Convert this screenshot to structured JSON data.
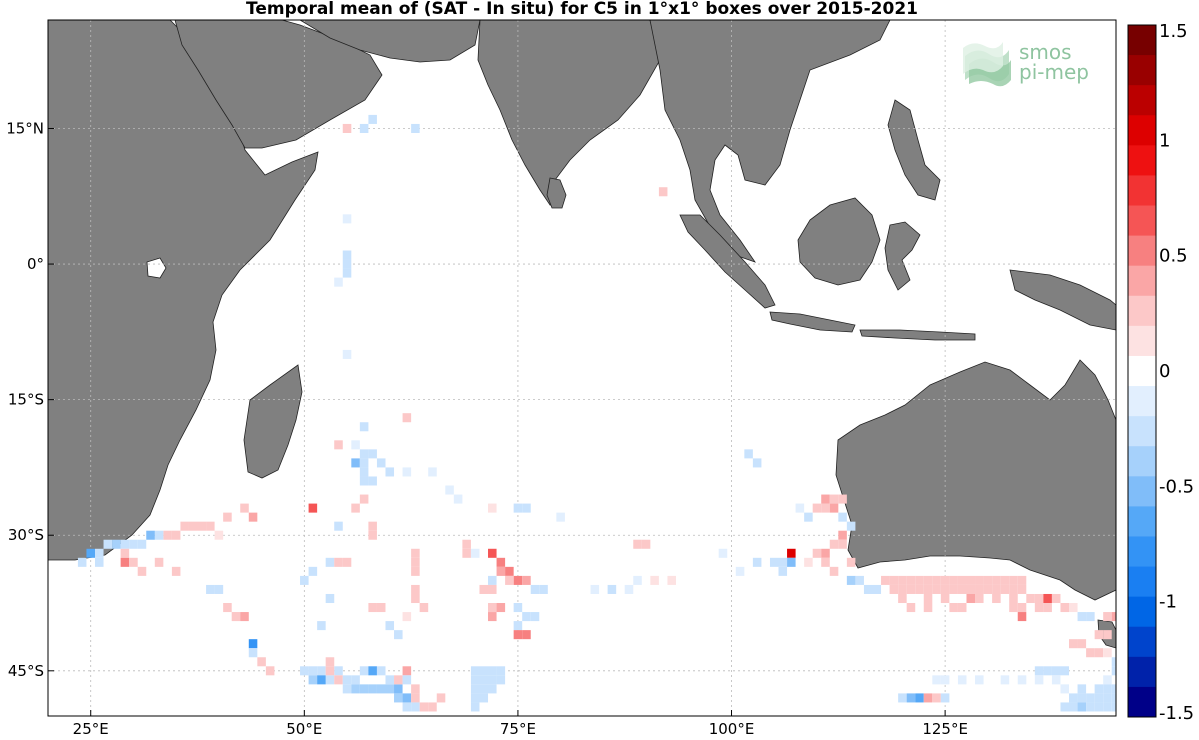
{
  "title": "Temporal mean of (SAT - In situ) for C5 in 1°x1° boxes over 2015-2021",
  "logo": {
    "line1": "smos",
    "line2": "pi-mep"
  },
  "map": {
    "lon_range": [
      20,
      145
    ],
    "lat_range": [
      -50,
      27
    ],
    "x_ticks": [
      {
        "lon": 25,
        "label": "25°E"
      },
      {
        "lon": 50,
        "label": "50°E"
      },
      {
        "lon": 75,
        "label": "75°E"
      },
      {
        "lon": 100,
        "label": "100°E"
      },
      {
        "lon": 125,
        "label": "125°E"
      }
    ],
    "y_ticks": [
      {
        "lat": 15,
        "label": "15°N"
      },
      {
        "lat": 0,
        "label": "0°"
      },
      {
        "lat": -15,
        "label": "15°S"
      },
      {
        "lat": -30,
        "label": "30°S"
      },
      {
        "lat": -45,
        "label": "45°S"
      }
    ],
    "grid": true,
    "land_color": "#808080",
    "ocean_color": "#ffffff"
  },
  "colorbar": {
    "range": [
      -1.5,
      1.5
    ],
    "tick_labels": [
      {
        "v": 1.5,
        "label": "1.5"
      },
      {
        "v": 1,
        "label": "1"
      },
      {
        "v": 0.5,
        "label": "0.5"
      },
      {
        "v": 0,
        "label": "0"
      },
      {
        "v": -0.5,
        "label": "-0.5"
      },
      {
        "v": -1,
        "label": "-1"
      },
      {
        "v": -1.5,
        "label": "-1.5"
      }
    ],
    "colors": [
      "#000088",
      "#0022aa",
      "#0044cc",
      "#0066e6",
      "#1a7ff2",
      "#3393f5",
      "#55a8f7",
      "#80bdf9",
      "#a6d1fb",
      "#c8e2fd",
      "#e2effe",
      "#ffffff",
      "#fde2e2",
      "#fcc8c8",
      "#faa6a6",
      "#f78080",
      "#f55555",
      "#f23333",
      "#ee1111",
      "#dd0000",
      "#bb0000",
      "#990000",
      "#770000"
    ]
  },
  "chart_data": {
    "type": "heatmap",
    "title": "Temporal mean of (SAT - In situ) for C5 in 1°x1° boxes over 2015-2021",
    "colorbar_range": [
      -1.5,
      1.5
    ],
    "cells": [
      [
        55,
        15,
        0.2
      ],
      [
        57,
        15,
        -0.2
      ],
      [
        58,
        16,
        -0.2
      ],
      [
        63,
        15,
        -0.3
      ],
      [
        92,
        8,
        0.2
      ],
      [
        55,
        5,
        -0.1
      ],
      [
        55,
        1,
        -0.2
      ],
      [
        55,
        0,
        -0.3
      ],
      [
        55,
        -1,
        -0.2
      ],
      [
        54,
        -2,
        -0.1
      ],
      [
        55,
        -10,
        -0.1
      ],
      [
        62,
        -17,
        0.2
      ],
      [
        57,
        -18,
        -0.2
      ],
      [
        54,
        -20,
        0.2
      ],
      [
        56,
        -20,
        -0.1
      ],
      [
        57,
        -21,
        -0.2
      ],
      [
        58,
        -21,
        -0.3
      ],
      [
        59,
        -22,
        -0.2
      ],
      [
        56,
        -22,
        -0.5
      ],
      [
        57,
        -22,
        -0.3
      ],
      [
        57,
        -23,
        -0.2
      ],
      [
        60,
        -23,
        -0.2
      ],
      [
        62,
        -23,
        -0.1
      ],
      [
        65,
        -23,
        -0.1
      ],
      [
        57,
        -24,
        -0.3
      ],
      [
        58,
        -24,
        -0.2
      ],
      [
        67,
        -25,
        -0.1
      ],
      [
        68,
        -26,
        -0.1
      ],
      [
        72,
        -27,
        0.1
      ],
      [
        57,
        -26,
        0.2
      ],
      [
        56,
        -27,
        0.2
      ],
      [
        75,
        -27,
        -0.2
      ],
      [
        76,
        -27,
        -0.2
      ],
      [
        80,
        -28,
        -0.1
      ],
      [
        54,
        -29,
        -0.2
      ],
      [
        58,
        -29,
        0.2
      ],
      [
        58,
        -30,
        0.2
      ],
      [
        51,
        -27,
        0.6
      ],
      [
        44,
        -28,
        0.4
      ],
      [
        43,
        -27,
        0.3
      ],
      [
        41,
        -28,
        0.3
      ],
      [
        39,
        -29,
        0.2
      ],
      [
        37,
        -29,
        0.3
      ],
      [
        38,
        -29,
        0.3
      ],
      [
        40,
        -30,
        0.1
      ],
      [
        36,
        -29,
        0.2
      ],
      [
        35,
        -30,
        0.2
      ],
      [
        34,
        -30,
        0.2
      ],
      [
        33,
        -30,
        -0.3
      ],
      [
        32,
        -30,
        -0.5
      ],
      [
        31,
        -31,
        -0.2
      ],
      [
        30,
        -31,
        -0.3
      ],
      [
        29,
        -31,
        -0.3
      ],
      [
        27,
        -31,
        -0.3
      ],
      [
        28,
        -31,
        -0.4
      ],
      [
        26,
        -32,
        -0.2
      ],
      [
        24,
        -33,
        -0.3
      ],
      [
        25,
        -32,
        -0.6
      ],
      [
        26,
        -33,
        -0.3
      ],
      [
        29,
        -32,
        0.3
      ],
      [
        29,
        -33,
        0.5
      ],
      [
        30,
        -33,
        0.3
      ],
      [
        31,
        -34,
        0.2
      ],
      [
        33,
        -33,
        0.2
      ],
      [
        35,
        -34,
        0.2
      ],
      [
        39,
        -36,
        -0.3
      ],
      [
        40,
        -36,
        -0.2
      ],
      [
        41,
        -38,
        0.3
      ],
      [
        42,
        -39,
        0.3
      ],
      [
        43,
        -39,
        0.4
      ],
      [
        50,
        -35,
        -0.2
      ],
      [
        51,
        -34,
        -0.2
      ],
      [
        53,
        -33,
        -0.2
      ],
      [
        54,
        -33,
        0.3
      ],
      [
        55,
        -33,
        0.3
      ],
      [
        53,
        -37,
        -0.2
      ],
      [
        52,
        -40,
        -0.3
      ],
      [
        58,
        -38,
        0.2
      ],
      [
        59,
        -38,
        0.2
      ],
      [
        60,
        -40,
        -0.2
      ],
      [
        61,
        -41,
        -0.2
      ],
      [
        62,
        -39,
        0.1
      ],
      [
        63,
        -32,
        0.3
      ],
      [
        63,
        -33,
        0.2
      ],
      [
        63,
        -34,
        0.2
      ],
      [
        63,
        -36,
        0.2
      ],
      [
        63,
        -37,
        0.2
      ],
      [
        64,
        -38,
        0.2
      ],
      [
        69,
        -31,
        0.2
      ],
      [
        69,
        -32,
        0.2
      ],
      [
        70,
        -32,
        -0.1
      ],
      [
        72,
        -32,
        0.6
      ],
      [
        73,
        -33,
        0.5
      ],
      [
        73,
        -34,
        0.4
      ],
      [
        74,
        -34,
        0.5
      ],
      [
        75,
        -35,
        0.5
      ],
      [
        74,
        -35,
        0.3
      ],
      [
        76,
        -35,
        0.4
      ],
      [
        77,
        -36,
        -0.3
      ],
      [
        78,
        -36,
        -0.2
      ],
      [
        72,
        -35,
        -0.3
      ],
      [
        72,
        -36,
        0.3
      ],
      [
        71,
        -36,
        0.3
      ],
      [
        72,
        -38,
        0.3
      ],
      [
        73,
        -38,
        0.4
      ],
      [
        72,
        -39,
        0.4
      ],
      [
        75,
        -38,
        -0.3
      ],
      [
        76,
        -39,
        -0.2
      ],
      [
        77,
        -39,
        -0.3
      ],
      [
        75,
        -40,
        -0.2
      ],
      [
        75,
        -41,
        0.5
      ],
      [
        76,
        -41,
        0.5
      ],
      [
        84,
        -36,
        -0.1
      ],
      [
        86,
        -36,
        -0.2
      ],
      [
        88,
        -36,
        -0.1
      ],
      [
        89,
        -35,
        -0.1
      ],
      [
        91,
        -35,
        0.1
      ],
      [
        93,
        -35,
        0.1
      ],
      [
        89,
        -31,
        0.2
      ],
      [
        90,
        -31,
        0.2
      ],
      [
        99,
        -32,
        -0.1
      ],
      [
        101,
        -34,
        -0.1
      ],
      [
        103,
        -33,
        -0.2
      ],
      [
        106,
        -34,
        -0.3
      ],
      [
        107,
        -32,
        1.1
      ],
      [
        107,
        -33,
        -0.5
      ],
      [
        106,
        -33,
        -0.3
      ],
      [
        105,
        -33,
        -0.2
      ],
      [
        110,
        -32,
        0.2
      ],
      [
        111,
        -32,
        0.4
      ],
      [
        111,
        -33,
        0.2
      ],
      [
        112,
        -34,
        0.2
      ],
      [
        109,
        -33,
        0.1
      ],
      [
        112,
        -31,
        0.3
      ],
      [
        113,
        -30,
        0.4
      ],
      [
        113,
        -31,
        0.3
      ],
      [
        102,
        -21,
        -0.2
      ],
      [
        103,
        -22,
        -0.2
      ],
      [
        108,
        -27,
        -0.1
      ],
      [
        109,
        -28,
        -0.2
      ],
      [
        110,
        -27,
        0.2
      ],
      [
        111,
        -27,
        0.3
      ],
      [
        111,
        -26,
        0.4
      ],
      [
        112,
        -26,
        0.3
      ],
      [
        113,
        -26,
        0.3
      ],
      [
        112,
        -27,
        0.4
      ],
      [
        113,
        -28,
        -0.3
      ],
      [
        114,
        -29,
        -0.2
      ],
      [
        114,
        -33,
        0.2
      ],
      [
        114,
        -35,
        -0.4
      ],
      [
        115,
        -35,
        -0.2
      ],
      [
        116,
        -36,
        -0.3
      ],
      [
        117,
        -36,
        -0.2
      ],
      [
        118,
        -35,
        0.2
      ],
      [
        119,
        -35,
        0.2
      ],
      [
        120,
        -35,
        0.3
      ],
      [
        121,
        -35,
        0.3
      ],
      [
        122,
        -35,
        0.3
      ],
      [
        123,
        -35,
        0.2
      ],
      [
        124,
        -35,
        0.3
      ],
      [
        125,
        -35,
        0.3
      ],
      [
        126,
        -35,
        0.3
      ],
      [
        127,
        -35,
        0.3
      ],
      [
        128,
        -35,
        0.3
      ],
      [
        129,
        -35,
        0.3
      ],
      [
        130,
        -35,
        0.3
      ],
      [
        131,
        -35,
        0.3
      ],
      [
        132,
        -35,
        0.3
      ],
      [
        133,
        -35,
        0.3
      ],
      [
        134,
        -35,
        0.3
      ],
      [
        119,
        -36,
        0.2
      ],
      [
        120,
        -36,
        0.2
      ],
      [
        121,
        -36,
        0.3
      ],
      [
        122,
        -36,
        0.2
      ],
      [
        123,
        -36,
        0.3
      ],
      [
        124,
        -36,
        0.2
      ],
      [
        125,
        -36,
        0.3
      ],
      [
        126,
        -36,
        0.2
      ],
      [
        127,
        -36,
        0.2
      ],
      [
        128,
        -36,
        0.3
      ],
      [
        129,
        -36,
        0.2
      ],
      [
        130,
        -36,
        0.2
      ],
      [
        131,
        -36,
        0.2
      ],
      [
        132,
        -36,
        0.3
      ],
      [
        133,
        -36,
        0.3
      ],
      [
        134,
        -36,
        0.2
      ],
      [
        120,
        -37,
        0.2
      ],
      [
        123,
        -37,
        0.3
      ],
      [
        125,
        -37,
        0.2
      ],
      [
        128,
        -37,
        0.4
      ],
      [
        129,
        -37,
        0.3
      ],
      [
        131,
        -37,
        0.2
      ],
      [
        133,
        -37,
        0.3
      ],
      [
        135,
        -37,
        0.2
      ],
      [
        136,
        -37,
        0.2
      ],
      [
        137,
        -37,
        0.6
      ],
      [
        138,
        -37,
        0.3
      ],
      [
        121,
        -38,
        0.3
      ],
      [
        126,
        -38,
        0.2
      ],
      [
        127,
        -38,
        0.2
      ],
      [
        133,
        -38,
        0.2
      ],
      [
        134,
        -38,
        0.2
      ],
      [
        136,
        -38,
        0.2
      ],
      [
        139,
        -38,
        0.2
      ],
      [
        140,
        -38,
        0.1
      ],
      [
        141,
        -39,
        -0.2
      ],
      [
        142,
        -39,
        -0.2
      ],
      [
        144,
        -39,
        0.3
      ],
      [
        145,
        -39,
        0.4
      ],
      [
        134,
        -39,
        0.5
      ],
      [
        123,
        -38,
        0.2
      ],
      [
        137,
        -38,
        0.2
      ],
      [
        140,
        -42,
        0.2
      ],
      [
        141,
        -42,
        0.2
      ],
      [
        142,
        -43,
        0.2
      ],
      [
        143,
        -43,
        0.2
      ],
      [
        144,
        -43,
        0.1
      ],
      [
        143,
        -41,
        0.2
      ],
      [
        144,
        -41,
        0.2
      ],
      [
        145,
        -44,
        -0.2
      ],
      [
        145,
        -45,
        -0.2
      ],
      [
        144,
        -46,
        -0.1
      ],
      [
        136,
        -45,
        -0.2
      ],
      [
        137,
        -45,
        -0.2
      ],
      [
        138,
        -45,
        -0.2
      ],
      [
        139,
        -45,
        -0.2
      ],
      [
        124,
        -46,
        -0.1
      ],
      [
        125,
        -46,
        -0.1
      ],
      [
        127,
        -46,
        -0.1
      ],
      [
        129,
        -46,
        -0.1
      ],
      [
        132,
        -46,
        -0.1
      ],
      [
        134,
        -46,
        -0.1
      ],
      [
        136,
        -46,
        -0.1
      ],
      [
        138,
        -46,
        -0.1
      ],
      [
        120,
        -48,
        -0.3
      ],
      [
        121,
        -48,
        -0.5
      ],
      [
        122,
        -48,
        -0.7
      ],
      [
        123,
        -48,
        0.4
      ],
      [
        124,
        -48,
        0.3
      ],
      [
        125,
        -48,
        -0.3
      ],
      [
        139,
        -47,
        -0.1
      ],
      [
        141,
        -47,
        -0.2
      ],
      [
        143,
        -47,
        -0.3
      ],
      [
        144,
        -47,
        -0.3
      ],
      [
        145,
        -47,
        -0.2
      ],
      [
        140,
        -48,
        -0.2
      ],
      [
        141,
        -48,
        -0.2
      ],
      [
        142,
        -48,
        -0.3
      ],
      [
        143,
        -48,
        -0.2
      ],
      [
        144,
        -48,
        -0.2
      ],
      [
        145,
        -48,
        -0.2
      ],
      [
        139,
        -49,
        -0.3
      ],
      [
        140,
        -49,
        -0.3
      ],
      [
        141,
        -49,
        -0.4
      ],
      [
        142,
        -49,
        -0.3
      ],
      [
        143,
        -49,
        -0.3
      ],
      [
        144,
        -49,
        -0.2
      ],
      [
        145,
        -49,
        -0.2
      ],
      [
        44,
        -42,
        -0.8
      ],
      [
        44,
        -43,
        -0.2
      ],
      [
        45,
        -44,
        0.2
      ],
      [
        46,
        -45,
        0.3
      ],
      [
        50,
        -45,
        -0.3
      ],
      [
        51,
        -45,
        -0.3
      ],
      [
        52,
        -45,
        -0.2
      ],
      [
        53,
        -46,
        -0.3
      ],
      [
        54,
        -45,
        -0.2
      ],
      [
        51,
        -46,
        -0.4
      ],
      [
        52,
        -46,
        -0.6
      ],
      [
        53,
        -45,
        0.2
      ],
      [
        53,
        -44,
        0.2
      ],
      [
        54,
        -46,
        0.2
      ],
      [
        55,
        -46,
        -0.2
      ],
      [
        56,
        -46,
        -0.3
      ],
      [
        57,
        -45,
        -0.3
      ],
      [
        58,
        -45,
        -0.7
      ],
      [
        59,
        -45,
        -0.3
      ],
      [
        55,
        -47,
        -0.3
      ],
      [
        56,
        -47,
        -0.4
      ],
      [
        57,
        -47,
        -0.4
      ],
      [
        58,
        -47,
        -0.4
      ],
      [
        59,
        -47,
        -0.4
      ],
      [
        60,
        -47,
        -0.4
      ],
      [
        61,
        -47,
        -0.5
      ],
      [
        60,
        -46,
        -0.3
      ],
      [
        61,
        -46,
        0.3
      ],
      [
        62,
        -45,
        0.4
      ],
      [
        62,
        -46,
        -0.2
      ],
      [
        61,
        -48,
        -0.4
      ],
      [
        62,
        -48,
        -0.5
      ],
      [
        63,
        -47,
        0.3
      ],
      [
        63,
        -48,
        0.2
      ],
      [
        62,
        -49,
        -0.2
      ],
      [
        63,
        -49,
        -0.2
      ],
      [
        64,
        -49,
        0.3
      ],
      [
        65,
        -49,
        0.2
      ],
      [
        66,
        -48,
        0.2
      ],
      [
        70,
        -45,
        -0.3
      ],
      [
        71,
        -45,
        -0.3
      ],
      [
        72,
        -45,
        -0.3
      ],
      [
        73,
        -45,
        -0.2
      ],
      [
        70,
        -46,
        -0.3
      ],
      [
        71,
        -46,
        -0.2
      ],
      [
        72,
        -46,
        -0.3
      ],
      [
        73,
        -46,
        -0.3
      ],
      [
        70,
        -47,
        -0.3
      ],
      [
        71,
        -47,
        -0.2
      ],
      [
        72,
        -47,
        -0.2
      ],
      [
        70,
        -48,
        -0.3
      ],
      [
        71,
        -48,
        -0.2
      ],
      [
        70,
        -49,
        -0.2
      ]
    ]
  }
}
